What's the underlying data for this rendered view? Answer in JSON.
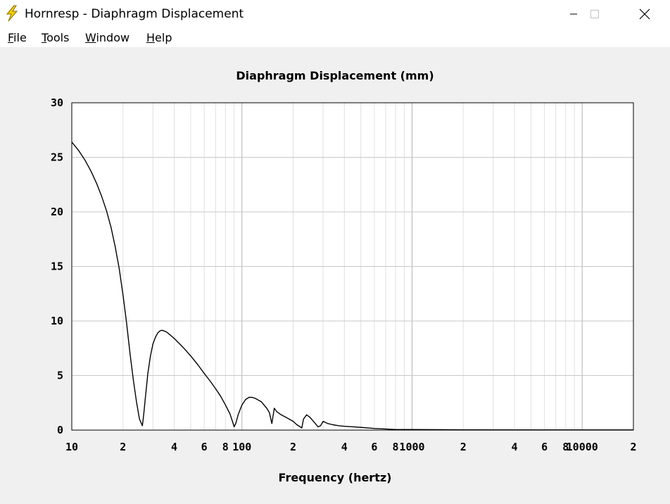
{
  "window": {
    "title": "Hornresp - Diaphragm Displacement",
    "icon": "lightning-icon",
    "controls": [
      "minimize-icon",
      "maximize-icon",
      "close-icon"
    ]
  },
  "menu": {
    "items": [
      {
        "accel": "F",
        "rest": "ile"
      },
      {
        "accel": "T",
        "rest": "ools"
      },
      {
        "accel": "W",
        "rest": "indow"
      },
      {
        "accel": "H",
        "rest": "elp"
      }
    ]
  },
  "chart_data": {
    "type": "line",
    "title": "Diaphragm Displacement (mm)",
    "xlabel": "Frequency (hertz)",
    "ylabel": "",
    "xscale": "log",
    "xlim": [
      10,
      20000
    ],
    "ylim": [
      0,
      30
    ],
    "yticks": [
      0,
      5,
      10,
      15,
      20,
      25,
      30
    ],
    "xtick_labels": [
      {
        "x": 10,
        "label": "10"
      },
      {
        "x": 20,
        "label": "2"
      },
      {
        "x": 40,
        "label": "4"
      },
      {
        "x": 60,
        "label": "6"
      },
      {
        "x": 80,
        "label": "8"
      },
      {
        "x": 100,
        "label": "100"
      },
      {
        "x": 200,
        "label": "2"
      },
      {
        "x": 400,
        "label": "4"
      },
      {
        "x": 600,
        "label": "6"
      },
      {
        "x": 800,
        "label": "8"
      },
      {
        "x": 1000,
        "label": "1000"
      },
      {
        "x": 2000,
        "label": "2"
      },
      {
        "x": 4000,
        "label": "4"
      },
      {
        "x": 6000,
        "label": "6"
      },
      {
        "x": 8000,
        "label": "8"
      },
      {
        "x": 10000,
        "label": "10000"
      },
      {
        "x": 20000,
        "label": "2"
      }
    ],
    "grid": true,
    "line_color": "#000000",
    "grid_color": "#c8c8c8",
    "series": [
      {
        "x": [
          10,
          11,
          12,
          13,
          14,
          15,
          16,
          17,
          18,
          19,
          20,
          21,
          22,
          23,
          24,
          25,
          26,
          26.5,
          27,
          27.5,
          28,
          29,
          30,
          31,
          32,
          33,
          34,
          36,
          38,
          40,
          45,
          50,
          55,
          60,
          65,
          70,
          75,
          80,
          85,
          88,
          90,
          92,
          95,
          100,
          105,
          110,
          115,
          120,
          130,
          140,
          145,
          150,
          155,
          160,
          170,
          180,
          190,
          200,
          210,
          220,
          225,
          230,
          240,
          250,
          260,
          270,
          280,
          290,
          300,
          310,
          320,
          340,
          370,
          400,
          450,
          500,
          550,
          600,
          700,
          800,
          1000,
          2000,
          5000,
          10000,
          20000
        ],
        "y": [
          26.4,
          25.6,
          24.7,
          23.7,
          22.6,
          21.4,
          20.1,
          18.6,
          16.8,
          14.8,
          12.4,
          9.8,
          7.0,
          4.6,
          2.6,
          1.0,
          0.4,
          1.5,
          2.8,
          4.0,
          5.2,
          6.8,
          7.9,
          8.5,
          8.9,
          9.1,
          9.15,
          9.0,
          8.7,
          8.4,
          7.6,
          6.8,
          6.0,
          5.2,
          4.5,
          3.8,
          3.1,
          2.3,
          1.5,
          0.8,
          0.3,
          0.6,
          1.4,
          2.3,
          2.8,
          3.0,
          3.0,
          2.9,
          2.6,
          2.0,
          1.6,
          0.6,
          2.0,
          1.7,
          1.4,
          1.2,
          1.0,
          0.8,
          0.5,
          0.3,
          0.2,
          1.0,
          1.4,
          1.2,
          0.9,
          0.6,
          0.3,
          0.4,
          0.8,
          0.7,
          0.6,
          0.5,
          0.4,
          0.35,
          0.3,
          0.25,
          0.2,
          0.15,
          0.1,
          0.05,
          0.05,
          0.03,
          0.02,
          0.02,
          0.02
        ]
      }
    ]
  }
}
